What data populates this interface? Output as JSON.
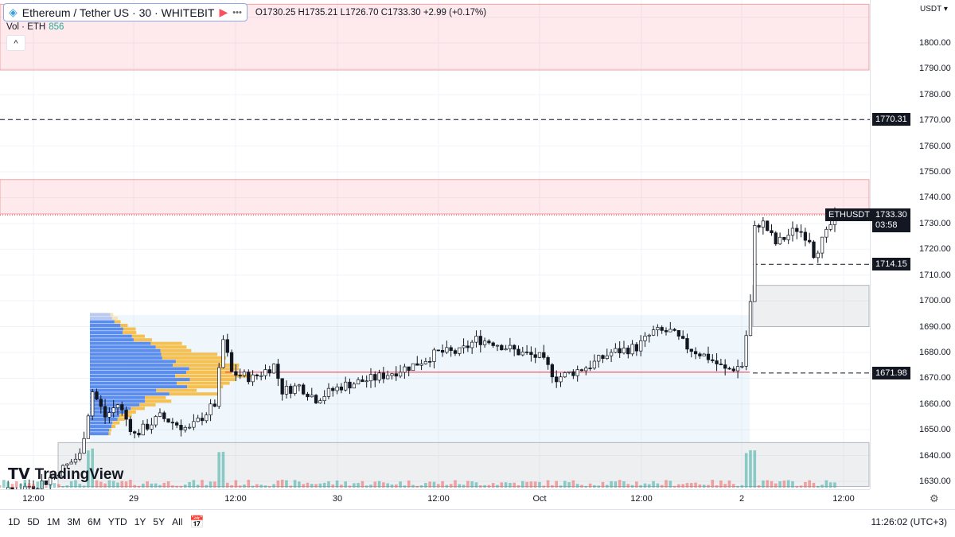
{
  "header": {
    "symbol": "Ethereum / Tether US · 30 · WHITEBIT",
    "menu_icon": "more-dots-icon",
    "ohlc": "O1730.25 H1735.21 L1726.70 C1733.30 +2.99 (+0.17%)",
    "vol_label": "Vol · ETH",
    "vol_value": "856",
    "collapse": "^"
  },
  "price_scale": {
    "currency": "USDT ▾",
    "ticks": [
      "1800.00",
      "1790.00",
      "1780.00",
      "1770.00",
      "1760.00",
      "1750.00",
      "1740.00",
      "1730.00",
      "1720.00",
      "1710.00",
      "1700.00",
      "1690.00",
      "1680.00",
      "1670.00",
      "1660.00",
      "1650.00",
      "1640.00",
      "1630.00"
    ],
    "current_symbol": "ETHUSDT",
    "current_price": "1733.30",
    "countdown": "03:58",
    "levels": [
      "1770.31",
      "1714.15",
      "1671.98"
    ]
  },
  "time_scale": {
    "ticks": [
      "12:00",
      "29",
      "12:00",
      "30",
      "12:00",
      "Oct",
      "12:00",
      "2",
      "12:00"
    ]
  },
  "toolbar": {
    "ranges": [
      "1D",
      "5D",
      "1M",
      "3M",
      "6M",
      "YTD",
      "1Y",
      "5Y",
      "All"
    ],
    "calendar_icon": "calendar-icon",
    "clock": "11:26:02 (UTC+3)"
  },
  "logo": "TradingView",
  "colors": {
    "up": "#ffffff",
    "down": "#131722",
    "zone_red": "#f7525f",
    "zone_gray": "#b2b5be",
    "profile_blue": "#5b8def",
    "profile_yellow": "#f5b93c",
    "volume": "#26a69a",
    "poc": "#f23645"
  },
  "chart_data": {
    "type": "candlestick",
    "ylim": [
      1625,
      1815
    ],
    "price_path": [
      [
        "2023-09-28T08:00",
        1625
      ],
      [
        "2023-09-28T13:30",
        1630
      ],
      [
        "2023-09-28T17:30",
        1640
      ],
      [
        "2023-09-28T19:00",
        1665
      ],
      [
        "2023-09-28T20:30",
        1655
      ],
      [
        "2023-09-28T22:00",
        1660
      ],
      [
        "2023-09-29T00:00",
        1648
      ],
      [
        "2023-09-29T03:00",
        1655
      ],
      [
        "2023-09-29T06:30",
        1650
      ],
      [
        "2023-09-29T09:30",
        1660
      ],
      [
        "2023-09-29T10:30",
        1685
      ],
      [
        "2023-09-29T11:30",
        1672
      ],
      [
        "2023-09-29T14:00",
        1670
      ],
      [
        "2023-09-29T16:30",
        1675
      ],
      [
        "2023-09-29T17:30",
        1665
      ],
      [
        "2023-09-29T19:30",
        1667
      ],
      [
        "2023-09-29T21:30",
        1662
      ],
      [
        "2023-09-30T00:30",
        1667
      ],
      [
        "2023-09-30T04:30",
        1670
      ],
      [
        "2023-09-30T09:00",
        1675
      ],
      [
        "2023-09-30T12:00",
        1680
      ],
      [
        "2023-09-30T14:30",
        1680
      ],
      [
        "2023-09-30T16:30",
        1685
      ],
      [
        "2023-09-30T18:30",
        1684
      ],
      [
        "2023-09-30T21:30",
        1680
      ],
      [
        "2023-10-01T00:00",
        1678
      ],
      [
        "2023-10-01T02:00",
        1670
      ],
      [
        "2023-10-01T06:00",
        1675
      ],
      [
        "2023-10-01T08:30",
        1680
      ],
      [
        "2023-10-01T11:30",
        1682
      ],
      [
        "2023-10-01T13:30",
        1688
      ],
      [
        "2023-10-01T15:30",
        1688
      ],
      [
        "2023-10-01T17:30",
        1682
      ],
      [
        "2023-10-01T20:00",
        1678
      ],
      [
        "2023-10-01T22:00",
        1673
      ],
      [
        "2023-10-02T00:00",
        1675
      ],
      [
        "2023-10-02T01:00",
        1700
      ],
      [
        "2023-10-02T01:30",
        1730
      ],
      [
        "2023-10-02T02:30",
        1730
      ],
      [
        "2023-10-02T04:00",
        1722
      ],
      [
        "2023-10-02T06:30",
        1728
      ],
      [
        "2023-10-02T08:00",
        1724
      ],
      [
        "2023-10-02T08:30",
        1718
      ],
      [
        "2023-10-02T10:00",
        1726
      ],
      [
        "2023-10-02T11:00",
        1733.3
      ]
    ],
    "zones": [
      {
        "type": "supply",
        "from": 1789.5,
        "to": 1815
      },
      {
        "type": "supply",
        "from": 1733.7,
        "to": 1747
      },
      {
        "type": "demand",
        "from": 1690,
        "to": 1706
      },
      {
        "type": "demand",
        "from": 1628,
        "to": 1645
      }
    ],
    "horizontal_levels": [
      1770.31,
      1714.15,
      1671.98
    ],
    "poc": 1672.3,
    "value_area": [
      1645,
      1694.5
    ]
  }
}
